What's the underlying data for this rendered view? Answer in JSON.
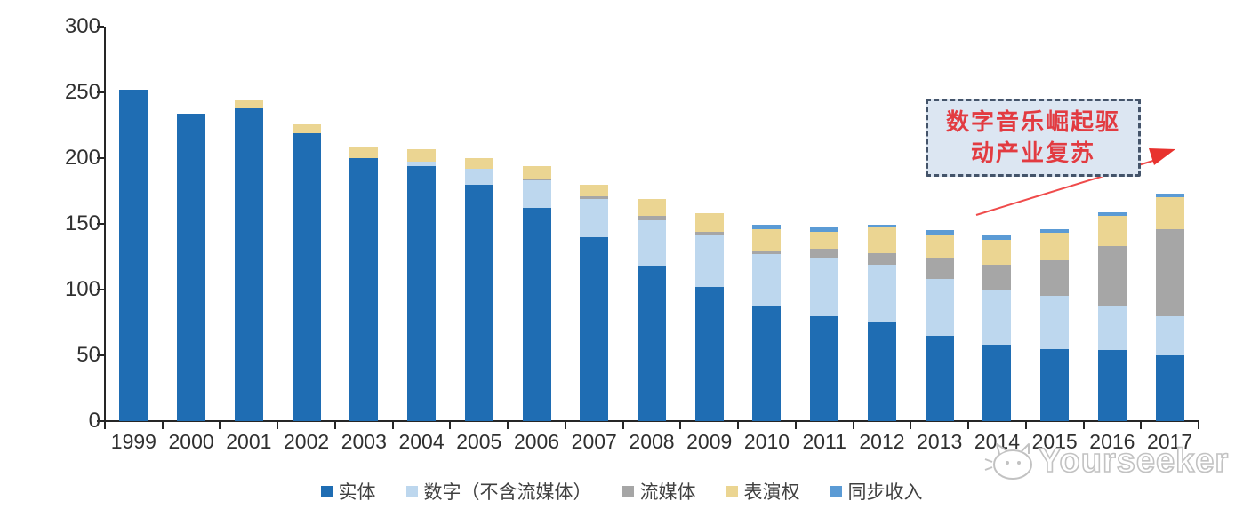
{
  "chart_data": {
    "type": "bar",
    "stacked": true,
    "title": "",
    "xlabel": "",
    "ylabel": "",
    "categories": [
      "1999",
      "2000",
      "2001",
      "2002",
      "2003",
      "2004",
      "2005",
      "2006",
      "2007",
      "2008",
      "2009",
      "2010",
      "2011",
      "2012",
      "2013",
      "2014",
      "2015",
      "2016",
      "2017"
    ],
    "series": [
      {
        "name": "实体",
        "color": "#1f6db3",
        "values": [
          252,
          234,
          238,
          219,
          200,
          194,
          180,
          162,
          140,
          118,
          102,
          88,
          80,
          75,
          65,
          58,
          55,
          54,
          50
        ]
      },
      {
        "name": "数字（不含流媒体）",
        "color": "#bdd7ee",
        "values": [
          0,
          0,
          0,
          0,
          0,
          3,
          12,
          21,
          29,
          35,
          39,
          39,
          44,
          44,
          43,
          41,
          40,
          34,
          30
        ]
      },
      {
        "name": "流媒体",
        "color": "#a6a6a6",
        "values": [
          0,
          0,
          0,
          0,
          0,
          0,
          0,
          1,
          2,
          3,
          3,
          3,
          7,
          9,
          16,
          20,
          27,
          45,
          66
        ]
      },
      {
        "name": "表演权",
        "color": "#ebd592",
        "values": [
          0,
          0,
          6,
          7,
          8,
          10,
          8,
          10,
          9,
          13,
          14,
          16,
          13,
          19,
          18,
          19,
          21,
          23,
          24
        ]
      },
      {
        "name": "同步收入",
        "color": "#5b9bd5",
        "values": [
          0,
          0,
          0,
          0,
          0,
          0,
          0,
          0,
          0,
          0,
          0,
          3,
          3,
          2,
          3,
          3,
          3,
          3,
          3
        ]
      }
    ],
    "ylim": [
      0,
      300
    ],
    "yticks": [
      0,
      50,
      100,
      150,
      200,
      250,
      300
    ],
    "grid": false,
    "legend_position": "bottom"
  },
  "annotation": {
    "line1": "数字音乐崛起驱",
    "line2": "动产业复苏",
    "text_color": "#e23b41",
    "box_fill": "#dce6f2",
    "box_border_color": "#44546a",
    "arrow_color": "#ef4b4b"
  },
  "watermark": {
    "text": "Yourseeker"
  }
}
